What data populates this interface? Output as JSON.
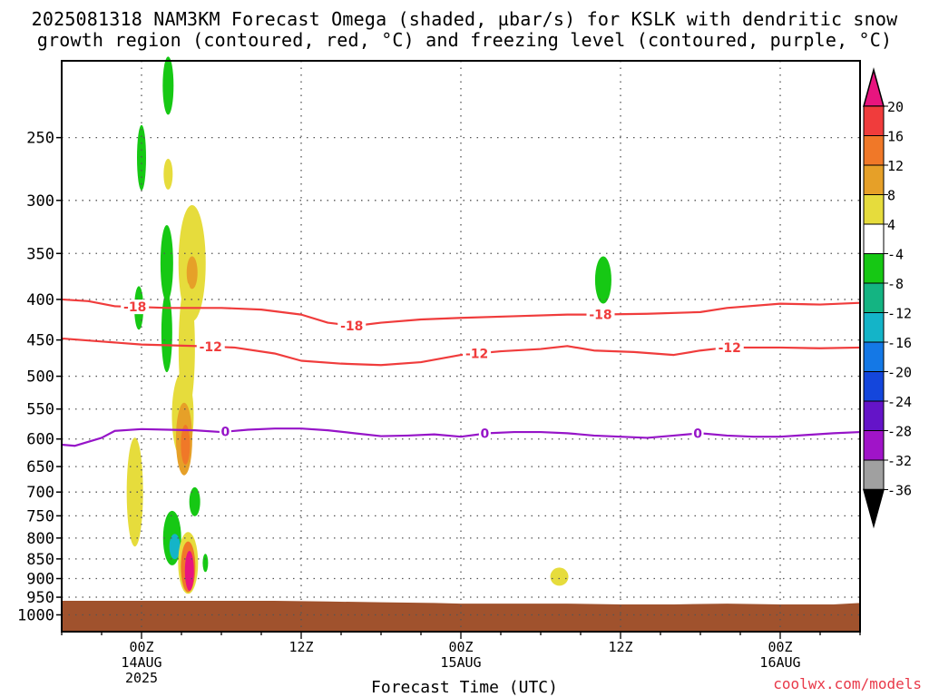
{
  "title": {
    "line1": "2025081318 NAM3KM Forecast Omega (shaded, µbar/s) for KSLK with dendritic snow",
    "line2": "growth region (contoured, red, °C) and freezing level (contoured, purple, °C)"
  },
  "credit": "coolwx.com/models",
  "chart_data": {
    "type": "heatmap",
    "title": "2025081318 NAM3KM Forecast Omega (shaded, µbar/s) for KSLK with dendritic snow growth region (contoured, red, °C) and freezing level (contoured, purple, °C)",
    "xlabel": "Forecast Time (UTC)",
    "ylabel": "",
    "x_units": "forecast hour from 2025-08-13 18Z",
    "xlim": [
      0,
      60
    ],
    "x_ticks": [
      {
        "x": 6,
        "label": "00Z",
        "sub1": "14AUG",
        "sub2": "2025"
      },
      {
        "x": 18,
        "label": "12Z",
        "sub1": "",
        "sub2": ""
      },
      {
        "x": 30,
        "label": "00Z",
        "sub1": "15AUG",
        "sub2": ""
      },
      {
        "x": 42,
        "label": "12Z",
        "sub1": "",
        "sub2": ""
      },
      {
        "x": 54,
        "label": "00Z",
        "sub1": "16AUG",
        "sub2": ""
      }
    ],
    "y_scale": "log-pressure (inverted)",
    "ylim": [
      1050,
      200
    ],
    "y_ticks": [
      250,
      300,
      350,
      400,
      450,
      500,
      550,
      600,
      650,
      700,
      750,
      800,
      850,
      900,
      950,
      1000
    ],
    "grid": true,
    "colorbar": {
      "labels": [
        "20",
        "16",
        "12",
        "8",
        "4",
        "-4",
        "-8",
        "-12",
        "-16",
        "-20",
        "-24",
        "-28",
        "-32",
        "-36"
      ],
      "colors": [
        "#e8157f",
        "#f03c3c",
        "#f07828",
        "#e6a028",
        "#e6dc3c",
        "#ffffff",
        "#16c814",
        "#14b482",
        "#14b4c8",
        "#1478e6",
        "#1446dc",
        "#6414c8",
        "#a014c8",
        "#a0a0a0",
        "#000000"
      ]
    },
    "omega_cells": [
      {
        "x": 8.0,
        "p": 215,
        "value": -8
      },
      {
        "x": 6.0,
        "p": 265,
        "value": -8
      },
      {
        "x": 8.0,
        "p": 278,
        "value": 4
      },
      {
        "x": 7.9,
        "p": 360,
        "value": -8
      },
      {
        "x": 7.9,
        "p": 440,
        "value": -8
      },
      {
        "x": 5.8,
        "p": 410,
        "value": -8
      },
      {
        "x": 9.8,
        "p": 360,
        "value": 4
      },
      {
        "x": 9.8,
        "p": 370,
        "value": 8
      },
      {
        "x": 9.4,
        "p": 460,
        "value": 4
      },
      {
        "x": 9.1,
        "p": 560,
        "value": 4
      },
      {
        "x": 9.2,
        "p": 600,
        "value": 8
      },
      {
        "x": 9.3,
        "p": 610,
        "value": 12
      },
      {
        "x": 5.5,
        "p": 700,
        "value": 4
      },
      {
        "x": 8.3,
        "p": 800,
        "value": -8
      },
      {
        "x": 8.5,
        "p": 820,
        "value": -12
      },
      {
        "x": 10.0,
        "p": 720,
        "value": -8
      },
      {
        "x": 9.5,
        "p": 860,
        "value": 4
      },
      {
        "x": 9.5,
        "p": 870,
        "value": 12
      },
      {
        "x": 9.6,
        "p": 880,
        "value": 20
      },
      {
        "x": 10.8,
        "p": 860,
        "value": -8
      },
      {
        "x": 37.4,
        "p": 895,
        "value": 4
      },
      {
        "x": 40.7,
        "p": 378,
        "value": -8
      }
    ],
    "contours": [
      {
        "name": "-18",
        "color": "#f03c3c",
        "points": [
          [
            0,
            400
          ],
          [
            2,
            402
          ],
          [
            4,
            408
          ],
          [
            8,
            410
          ],
          [
            12,
            410
          ],
          [
            15,
            412
          ],
          [
            18,
            418
          ],
          [
            20,
            428
          ],
          [
            22,
            432
          ],
          [
            24,
            428
          ],
          [
            27,
            424
          ],
          [
            30,
            422
          ],
          [
            34,
            420
          ],
          [
            38,
            418
          ],
          [
            40,
            418
          ],
          [
            44,
            417
          ],
          [
            48,
            415
          ],
          [
            50,
            410
          ],
          [
            54,
            405
          ],
          [
            57,
            406
          ],
          [
            60,
            404
          ]
        ],
        "labels_at": [
          5.5,
          21.8,
          40.5
        ]
      },
      {
        "name": "-12",
        "color": "#f03c3c",
        "points": [
          [
            0,
            448
          ],
          [
            3,
            452
          ],
          [
            6,
            456
          ],
          [
            10,
            458
          ],
          [
            13,
            460
          ],
          [
            16,
            468
          ],
          [
            18,
            478
          ],
          [
            21,
            482
          ],
          [
            24,
            484
          ],
          [
            27,
            480
          ],
          [
            30,
            470
          ],
          [
            33,
            465
          ],
          [
            36,
            462
          ],
          [
            38,
            458
          ],
          [
            40,
            464
          ],
          [
            43,
            466
          ],
          [
            46,
            470
          ],
          [
            48,
            464
          ],
          [
            50,
            460
          ],
          [
            54,
            460
          ],
          [
            57,
            461
          ],
          [
            60,
            460
          ]
        ],
        "labels_at": [
          11.2,
          31.2,
          50.2
        ]
      },
      {
        "name": "0",
        "color": "#9614c8",
        "points": [
          [
            0,
            610
          ],
          [
            1,
            612
          ],
          [
            3,
            598
          ],
          [
            4,
            586
          ],
          [
            6,
            583
          ],
          [
            8,
            584
          ],
          [
            10,
            585
          ],
          [
            12,
            588
          ],
          [
            14,
            584
          ],
          [
            16,
            582
          ],
          [
            18,
            582
          ],
          [
            20,
            585
          ],
          [
            22,
            590
          ],
          [
            24,
            595
          ],
          [
            26,
            594
          ],
          [
            28,
            592
          ],
          [
            30,
            596
          ],
          [
            32,
            590
          ],
          [
            34,
            588
          ],
          [
            36,
            588
          ],
          [
            38,
            590
          ],
          [
            40,
            594
          ],
          [
            42,
            596
          ],
          [
            44,
            598
          ],
          [
            46,
            594
          ],
          [
            48,
            590
          ],
          [
            50,
            594
          ],
          [
            52,
            596
          ],
          [
            54,
            596
          ],
          [
            56,
            593
          ],
          [
            58,
            590
          ],
          [
            60,
            588
          ]
        ],
        "labels_at": [
          12.3,
          31.8,
          47.8
        ]
      }
    ],
    "terrain_color": "#a0522d",
    "terrain": [
      [
        0,
        960
      ],
      [
        10,
        960
      ],
      [
        16,
        960
      ],
      [
        20,
        962
      ],
      [
        24,
        964
      ],
      [
        28,
        966
      ],
      [
        30,
        968
      ],
      [
        34,
        968
      ],
      [
        38,
        968
      ],
      [
        42,
        970
      ],
      [
        46,
        970
      ],
      [
        50,
        968
      ],
      [
        54,
        970
      ],
      [
        58,
        970
      ],
      [
        60,
        966
      ]
    ]
  }
}
